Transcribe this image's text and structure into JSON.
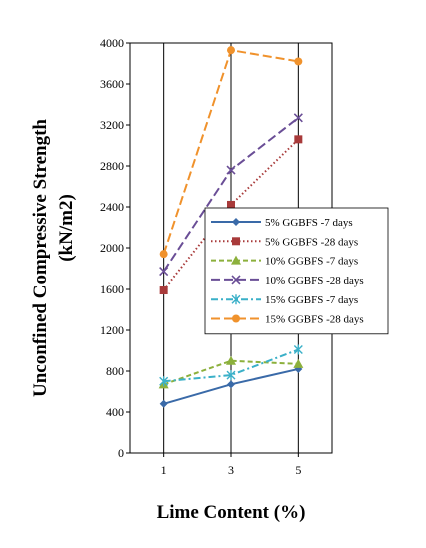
{
  "chart_data": {
    "type": "line",
    "title": "",
    "xlabel": "Lime Content (%)",
    "ylabel_line1": "Unconfined Compressive Strength",
    "ylabel_line2": "(kN/m2)",
    "x": [
      1,
      3,
      5
    ],
    "x_tick_labels": [
      "1",
      "3",
      "5"
    ],
    "ylim": [
      0,
      4000
    ],
    "y_ticks": [
      0,
      400,
      800,
      1200,
      1600,
      2000,
      2400,
      2800,
      3200,
      3600,
      4000
    ],
    "grid": "vertical",
    "legend_position": "center-right",
    "series": [
      {
        "name": "5% GGBFS -7 days",
        "values": [
          480,
          670,
          820
        ],
        "color": "#3a6aa8",
        "dash": "solid",
        "marker": "diamond"
      },
      {
        "name": "5% GGBFS -28 days",
        "values": [
          1590,
          2420,
          3060
        ],
        "color": "#a83a3a",
        "dash": "dotted",
        "marker": "square"
      },
      {
        "name": "10% GGBFS -7 days",
        "values": [
          670,
          900,
          870
        ],
        "color": "#8cb03c",
        "dash": "dashed",
        "marker": "triangle"
      },
      {
        "name": "10% GGBFS -28 days",
        "values": [
          1770,
          2760,
          3270
        ],
        "color": "#6a4e96",
        "dash": "longdash",
        "marker": "x"
      },
      {
        "name": "15% GGBFS -7 days",
        "values": [
          700,
          760,
          1010
        ],
        "color": "#3ab0c8",
        "dash": "dashdot",
        "marker": "star"
      },
      {
        "name": "15% GGBFS -28 days",
        "values": [
          1940,
          3930,
          3820
        ],
        "color": "#f0922c",
        "dash": "longdash",
        "marker": "circle"
      }
    ]
  }
}
